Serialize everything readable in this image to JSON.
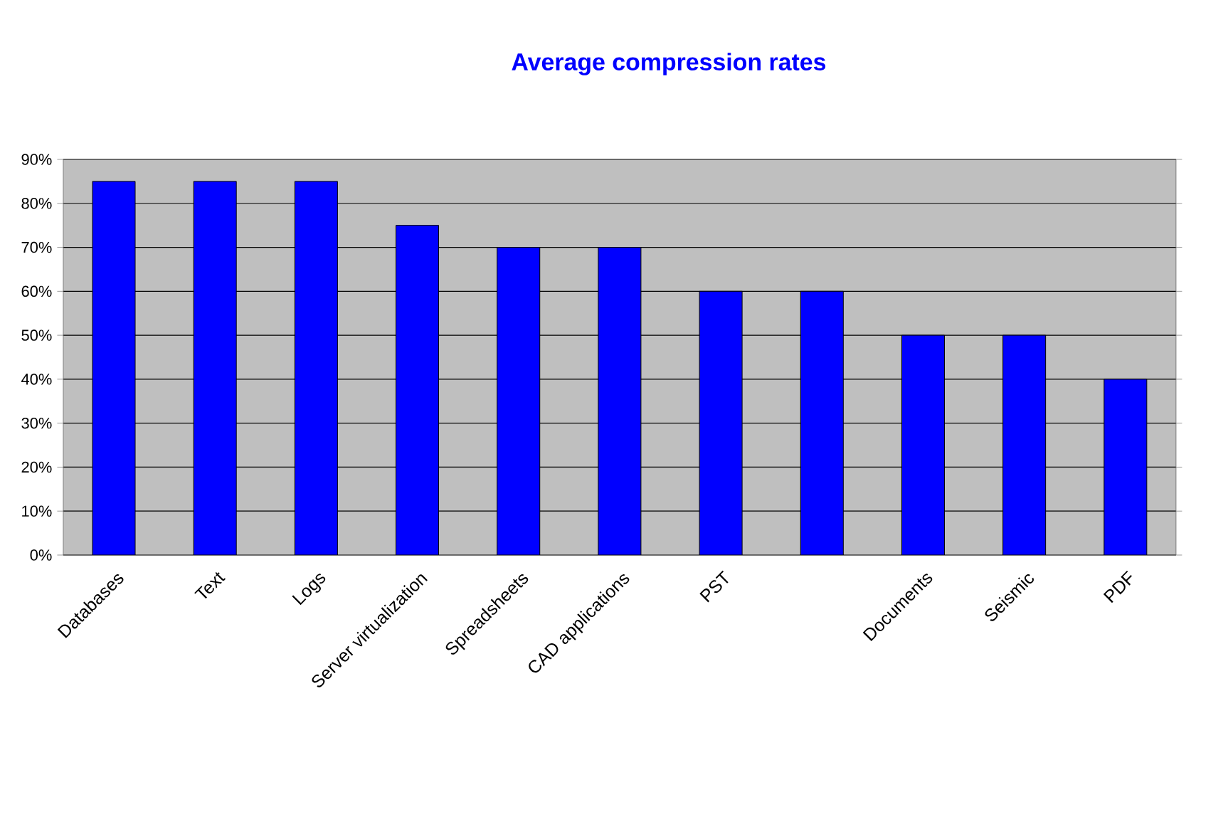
{
  "chart_data": {
    "type": "bar",
    "title": "Average compression rates",
    "categories": [
      "Databases",
      "Text",
      "Logs",
      "Server virtualization",
      "Spreadsheets",
      "CAD applications",
      "PST",
      null,
      "Documents",
      "Seismic",
      "PDF"
    ],
    "values": [
      85,
      85,
      85,
      75,
      70,
      70,
      60,
      60,
      50,
      50,
      40
    ],
    "color": "#0000ff",
    "ylim": [
      0,
      90
    ],
    "yticks": [
      {
        "value": 0,
        "label": "0%"
      },
      {
        "value": 10,
        "label": "10%"
      },
      {
        "value": 20,
        "label": "20%"
      },
      {
        "value": 30,
        "label": "30%"
      },
      {
        "value": 40,
        "label": "40%"
      },
      {
        "value": 50,
        "label": "50%"
      },
      {
        "value": 60,
        "label": "60%"
      },
      {
        "value": 70,
        "label": "70%"
      },
      {
        "value": 80,
        "label": "80%"
      },
      {
        "value": 90,
        "label": "90%"
      }
    ],
    "grid": "y"
  }
}
